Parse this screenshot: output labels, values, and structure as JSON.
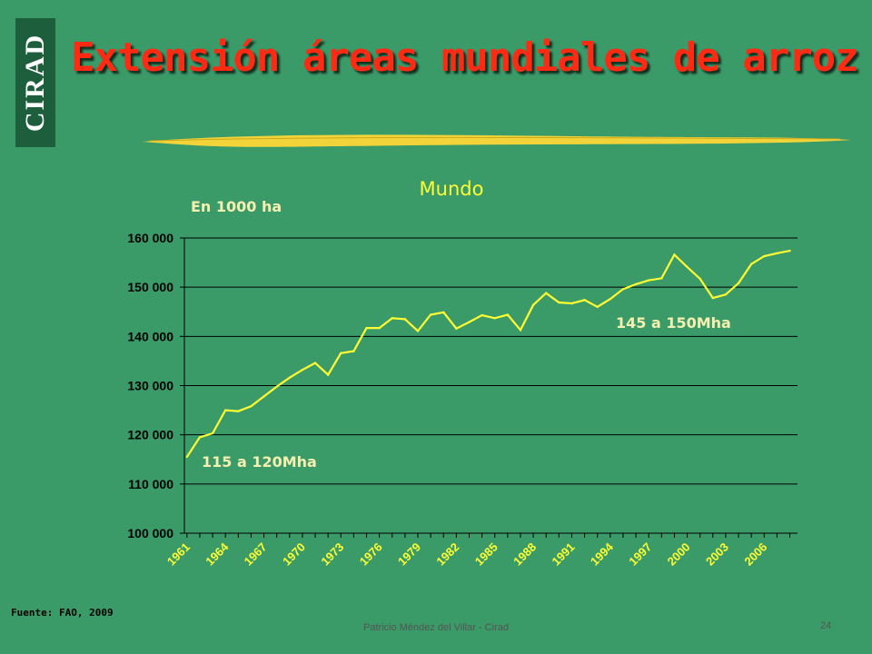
{
  "logo": "CIRAD",
  "title": "Extensión áreas mundiales de arroz",
  "source": "Fuente: FAO, 2009",
  "footer": "Patricio Méndez del Villar - Cirad",
  "page_number": "24",
  "colors": {
    "background": "#3a9a68",
    "title": "#ff2a14",
    "line": "#ffff33",
    "label": "#f5f0b0"
  },
  "chart_data": {
    "type": "line",
    "title": "Mundo",
    "ylabel": "En 1000 ha",
    "ylim": [
      100000,
      160000
    ],
    "yticks": [
      100000,
      110000,
      120000,
      130000,
      140000,
      150000,
      160000
    ],
    "ytick_labels": [
      "100 000",
      "110 000",
      "120 000",
      "130 000",
      "140 000",
      "150 000",
      "160 000"
    ],
    "xticks": [
      1961,
      1964,
      1967,
      1970,
      1973,
      1976,
      1979,
      1982,
      1985,
      1988,
      1991,
      1994,
      1997,
      2000,
      2003,
      2006
    ],
    "grid": "horizontal",
    "x": [
      1961,
      1962,
      1963,
      1964,
      1965,
      1966,
      1967,
      1968,
      1969,
      1970,
      1971,
      1972,
      1973,
      1974,
      1975,
      1976,
      1977,
      1978,
      1979,
      1980,
      1981,
      1982,
      1983,
      1984,
      1985,
      1986,
      1987,
      1988,
      1989,
      1990,
      1991,
      1992,
      1993,
      1994,
      1995,
      1996,
      1997,
      1998,
      1999,
      2000,
      2001,
      2002,
      2003,
      2004,
      2005,
      2006,
      2007,
      2008
    ],
    "series": [
      {
        "values": [
          115500,
          119500,
          120300,
          125000,
          124800,
          125800,
          127800,
          129800,
          131600,
          133200,
          134600,
          132200,
          136600,
          137000,
          141700,
          141700,
          143700,
          143500,
          141100,
          144400,
          144900,
          141600,
          142900,
          144300,
          143700,
          144400,
          141300,
          146400,
          148800,
          146900,
          146700,
          147400,
          146000,
          147600,
          149600,
          150600,
          151400,
          151800,
          156600,
          154100,
          151700,
          147800,
          148500,
          150800,
          154700,
          156300,
          156900,
          157400
        ]
      }
    ],
    "annotations": [
      "115 a 120Mha",
      "145 a 150Mha"
    ]
  }
}
